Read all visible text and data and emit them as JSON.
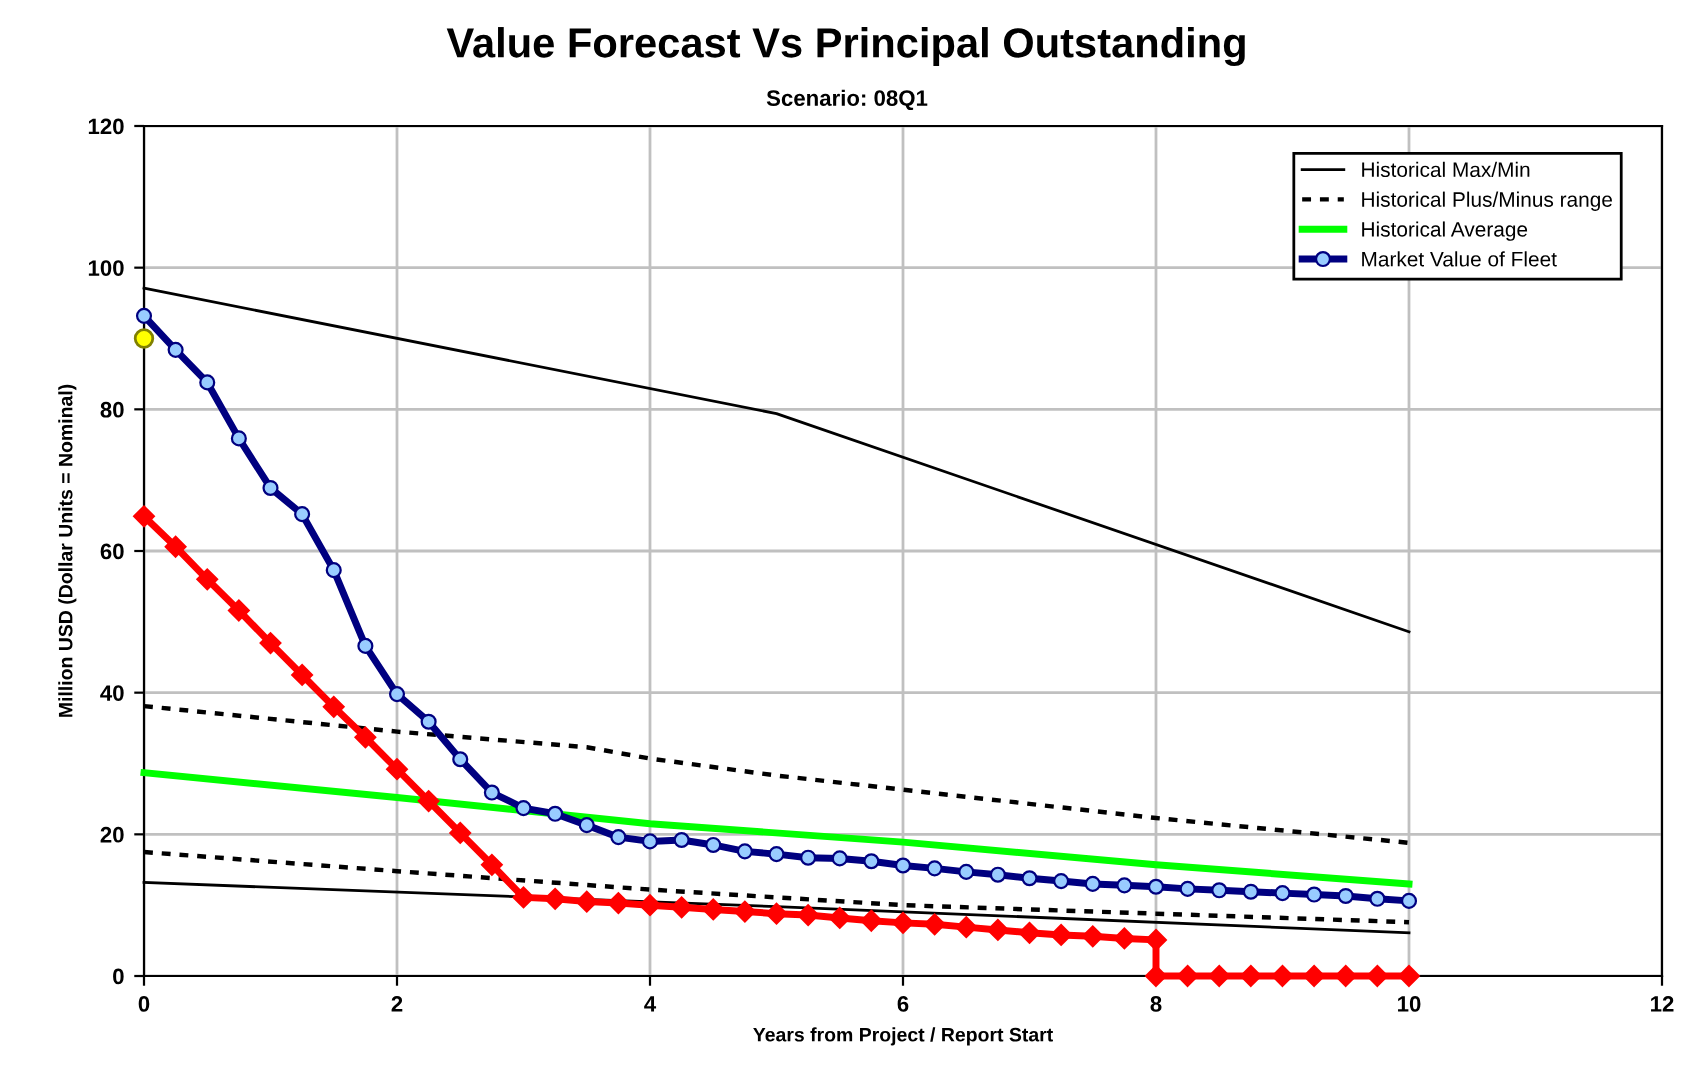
{
  "chart_data": {
    "type": "line",
    "title": "Value Forecast Vs Principal Outstanding",
    "subtitle": "Scenario: 08Q1",
    "xlabel": "Years from Project / Report Start",
    "ylabel": "Million USD (Dollar Units = Nominal)",
    "xlim": [
      0,
      12
    ],
    "xticks": [
      0,
      2,
      4,
      6,
      8,
      10,
      12
    ],
    "ylim": [
      0,
      120
    ],
    "yticks": [
      0,
      20,
      40,
      60,
      80,
      100,
      120
    ],
    "grid": true,
    "legend": "top right",
    "series": [
      {
        "name": "Historical Max/Min",
        "color": "#000000",
        "line_style": "solid",
        "marker": "none",
        "x": [
          0,
          5,
          10
        ],
        "values": [
          97.1,
          79.4,
          48.6
        ]
      },
      {
        "color": "#000000",
        "line_style": "solid",
        "marker": "none",
        "x": [
          0,
          5,
          10
        ],
        "values": [
          13.2,
          9.8,
          6.1
        ]
      },
      {
        "name": "Historical Plus/Minus range",
        "color": "#000000",
        "line_style": "dashed",
        "marker": "none",
        "x": [
          0,
          2,
          3.5,
          4,
          5,
          8,
          10
        ],
        "values": [
          38.1,
          34.5,
          32.3,
          30.7,
          28.3,
          22.3,
          18.8
        ]
      },
      {
        "color": "#000000",
        "line_style": "dashed",
        "marker": "none",
        "x": [
          0,
          2,
          4,
          6,
          8,
          10
        ],
        "values": [
          17.5,
          14.8,
          12.2,
          10.0,
          8.8,
          7.6
        ]
      },
      {
        "name": "Historical Average",
        "color": "#00ff00",
        "line_style": "solid",
        "marker": "none",
        "x": [
          0,
          2,
          4,
          6,
          8,
          10
        ],
        "values": [
          28.7,
          25.2,
          21.5,
          18.9,
          15.7,
          13.0
        ]
      },
      {
        "name": "Market Value of Fleet",
        "color": "#000080",
        "line_style": "solid",
        "marker": "circle",
        "x": [
          0,
          0.25,
          0.5,
          0.75,
          1,
          1.25,
          1.5,
          1.75,
          2,
          2.25,
          2.5,
          2.75,
          3,
          3.25,
          3.5,
          3.75,
          4,
          4.25,
          4.5,
          4.75,
          5,
          5.25,
          5.5,
          5.75,
          6,
          6.25,
          6.5,
          6.75,
          7,
          7.25,
          7.5,
          7.75,
          8,
          8.25,
          8.5,
          8.75,
          9,
          9.25,
          9.5,
          9.75,
          10
        ],
        "values": [
          93.2,
          88.4,
          83.8,
          75.9,
          68.9,
          65.2,
          57.3,
          46.6,
          39.8,
          35.9,
          30.6,
          25.9,
          23.7,
          22.9,
          21.3,
          19.6,
          19.0,
          19.2,
          18.5,
          17.6,
          17.2,
          16.7,
          16.6,
          16.2,
          15.6,
          15.2,
          14.7,
          14.3,
          13.8,
          13.4,
          13.0,
          12.8,
          12.6,
          12.3,
          12.1,
          11.9,
          11.7,
          11.5,
          11.3,
          10.9,
          10.6
        ]
      },
      {
        "color": "#ff0000",
        "line_style": "solid",
        "marker": "diamond",
        "x": [
          0,
          0.25,
          0.5,
          0.75,
          1,
          1.25,
          1.5,
          1.75,
          2,
          2.25,
          2.5,
          2.75,
          3,
          3.25,
          3.5,
          3.75,
          4,
          4.25,
          4.5,
          4.75,
          5,
          5.25,
          5.5,
          5.75,
          6,
          6.25,
          6.5,
          6.75,
          7,
          7.25,
          7.5,
          7.75,
          8,
          8,
          8.25,
          8.5,
          8.75,
          9,
          9.25,
          9.5,
          9.75,
          10
        ],
        "values": [
          64.9,
          60.6,
          56.0,
          51.6,
          47.0,
          42.5,
          38.0,
          33.7,
          29.2,
          24.7,
          20.2,
          15.7,
          11.1,
          10.9,
          10.5,
          10.3,
          10.0,
          9.7,
          9.4,
          9.1,
          8.8,
          8.6,
          8.2,
          7.8,
          7.5,
          7.3,
          6.9,
          6.5,
          6.1,
          5.8,
          5.6,
          5.3,
          5.1,
          0,
          0,
          0,
          0,
          0,
          0,
          0,
          0,
          0
        ]
      },
      {
        "type": "scatter",
        "color": "#ffff00",
        "marker": "circle",
        "x": [
          0
        ],
        "values": [
          90
        ]
      }
    ]
  }
}
